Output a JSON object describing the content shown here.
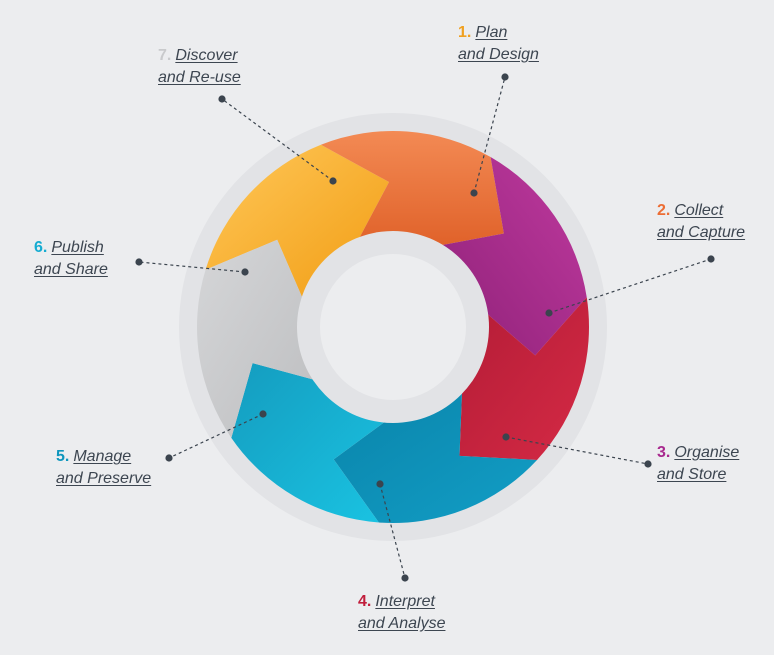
{
  "colors": {
    "background": "#ecedef",
    "ring": "#e2e3e6",
    "plan": "#f7a823",
    "collect": "#eb6e33",
    "organise": "#a52c8f",
    "interpret": "#c0213d",
    "manage": "#0a8fb8",
    "publish": "#12b0d4",
    "discover": "#c8c9cb",
    "connector": "#3b444e"
  },
  "steps": [
    {
      "number": "1.",
      "line1": "Plan",
      "line2": "and Design",
      "color": "#f0a020"
    },
    {
      "number": "2.",
      "line1": "Collect",
      "line2": "and Capture",
      "color": "#ec6d34"
    },
    {
      "number": "3.",
      "line1": "Organise",
      "line2": "and Store",
      "color": "#a8288e"
    },
    {
      "number": "4.",
      "line1": "Interpret",
      "line2": "and Analyse",
      "color": "#c11e3c"
    },
    {
      "number": "5.",
      "line1": "Manage",
      "line2": "and Preserve",
      "color": "#0e96bd"
    },
    {
      "number": "6.",
      "line1": "Publish",
      "line2": "and Share",
      "color": "#15acd1"
    },
    {
      "number": "7.",
      "line1": "Discover",
      "line2": "and Re-use",
      "color": "#c9cacc"
    }
  ]
}
